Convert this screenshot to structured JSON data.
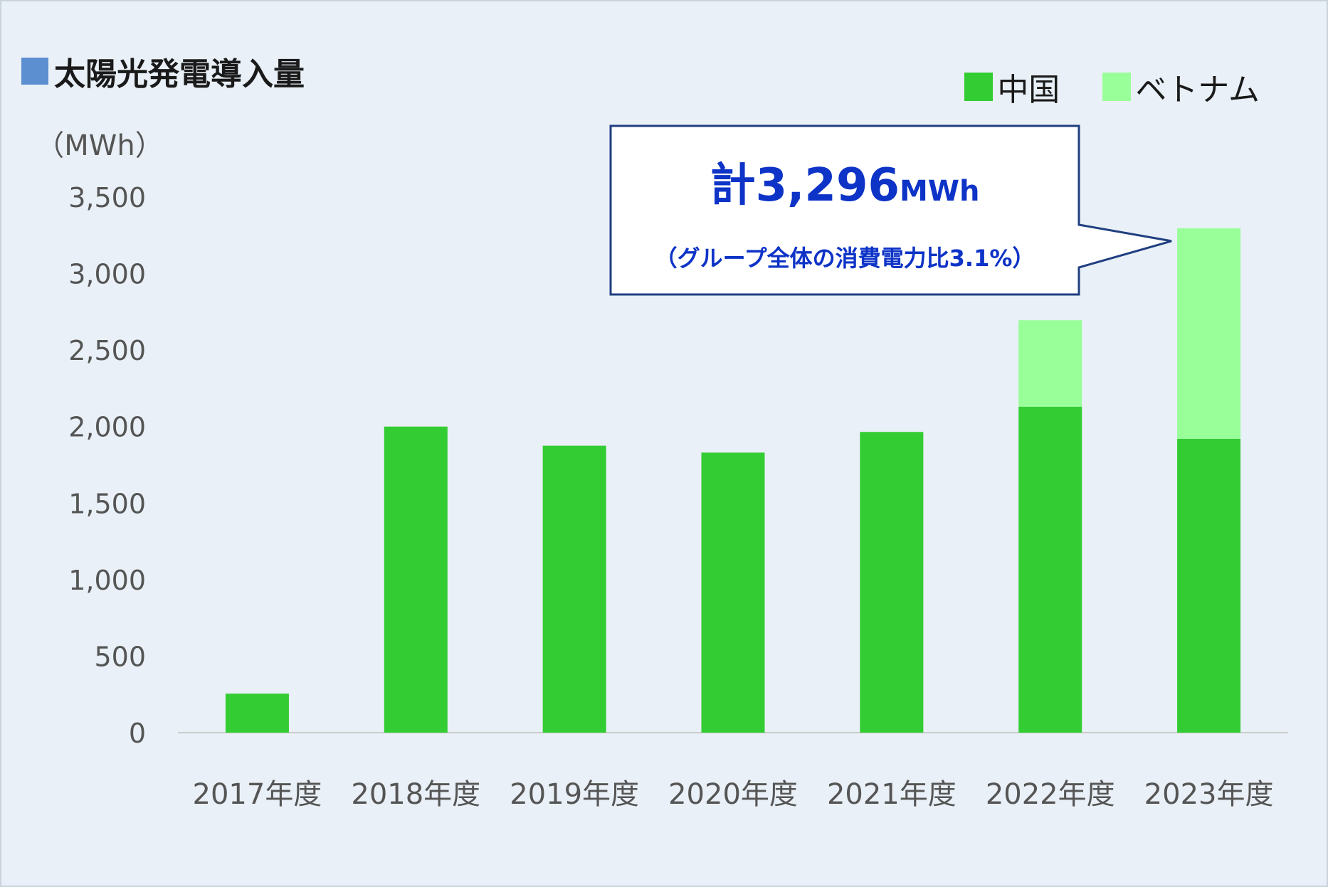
{
  "title": "太陽光発電導入量",
  "colors": {
    "title_marker": "#5b8fd0",
    "china": "#33cc33",
    "vietnam": "#99ff99",
    "callout_text": "#0d33c7",
    "callout_border": "#1f3f80",
    "axis_text": "#555555"
  },
  "legend": [
    {
      "label": "中国",
      "color": "#33cc33"
    },
    {
      "label": "ベトナム",
      "color": "#99ff99"
    }
  ],
  "callout": {
    "prefix": "計",
    "value": "3,296",
    "unit": "MWh",
    "note": "（グループ全体の消費電力比3.1%）"
  },
  "chart_data": {
    "type": "bar",
    "stacked": true,
    "ylabel": "（MWh）",
    "xlabel": "",
    "ylim": [
      0,
      3500
    ],
    "yticks": [
      "0",
      "500",
      "1,000",
      "1,500",
      "2,000",
      "2,500",
      "3,000",
      "3,500"
    ],
    "grid": false,
    "legend_position": "top-right",
    "categories": [
      "2017年度",
      "2018年度",
      "2019年度",
      "2020年度",
      "2021年度",
      "2022年度",
      "2023年度"
    ],
    "series": [
      {
        "name": "中国",
        "color": "#33cc33",
        "values": [
          255,
          2000,
          1875,
          1830,
          1965,
          2130,
          1920
        ]
      },
      {
        "name": "ベトナム",
        "color": "#99ff99",
        "values": [
          0,
          0,
          0,
          0,
          0,
          565,
          1376
        ]
      }
    ]
  }
}
